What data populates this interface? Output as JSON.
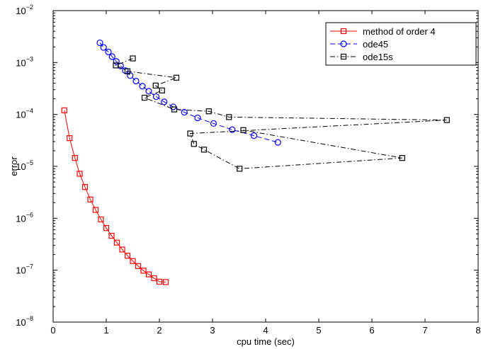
{
  "chart_data": {
    "type": "line",
    "xlabel": "cpu time (sec)",
    "ylabel": "error",
    "xlim": [
      0,
      8
    ],
    "ylim": [
      1e-08,
      0.01
    ],
    "yscale": "log",
    "grid": false,
    "legend_position": "top-right",
    "x_ticks": [
      "0",
      "1",
      "2",
      "3",
      "4",
      "5",
      "6",
      "7",
      "8"
    ],
    "y_ticks": [
      {
        "value": 1e-08,
        "base": "10",
        "exp": "−8"
      },
      {
        "value": 1e-07,
        "base": "10",
        "exp": "−7"
      },
      {
        "value": 1e-06,
        "base": "10",
        "exp": "−6"
      },
      {
        "value": 1e-05,
        "base": "10",
        "exp": "−5"
      },
      {
        "value": 0.0001,
        "base": "10",
        "exp": "−4"
      },
      {
        "value": 0.001,
        "base": "10",
        "exp": "−3"
      },
      {
        "value": 0.01,
        "base": "10",
        "exp": "−2"
      }
    ],
    "series": [
      {
        "name": "method of order 4",
        "color": "#ff0000",
        "line_style": "solid",
        "marker": "square",
        "x": [
          0.21,
          0.31,
          0.41,
          0.5,
          0.6,
          0.7,
          0.8,
          0.9,
          1.0,
          1.1,
          1.2,
          1.3,
          1.4,
          1.5,
          1.6,
          1.7,
          1.8,
          1.9,
          2.0,
          2.12
        ],
        "y": [
          0.00012,
          3.5e-05,
          1.45e-05,
          7.2e-06,
          4e-06,
          2.3e-06,
          1.45e-06,
          9.5e-07,
          6.5e-07,
          4.6e-07,
          3.4e-07,
          2.5e-07,
          1.9e-07,
          1.5e-07,
          1.2e-07,
          9.8e-08,
          8.3e-08,
          7e-08,
          6e-08,
          5.9e-08
        ]
      },
      {
        "name": "ode45",
        "color": "#0000ff",
        "line_style": "dashed",
        "marker": "circle",
        "x": [
          0.88,
          0.95,
          1.04,
          1.11,
          1.19,
          1.27,
          1.36,
          1.45,
          1.56,
          1.68,
          1.8,
          1.94,
          2.09,
          2.26,
          2.47,
          2.72,
          3.02,
          3.37,
          3.78,
          4.23
        ],
        "y": [
          0.0024,
          0.00195,
          0.0016,
          0.0013,
          0.00105,
          0.00086,
          0.0007,
          0.00056,
          0.00044,
          0.00035,
          0.00028,
          0.00022,
          0.000175,
          0.00014,
          0.00011,
          8.6e-05,
          6.7e-05,
          5.1e-05,
          3.9e-05,
          2.9e-05
        ]
      },
      {
        "name": "ode15s",
        "color": "#000000",
        "line_style": "dashdot",
        "marker": "square",
        "x": [
          1.5,
          1.18,
          1.4,
          2.32,
          1.93,
          2.05,
          1.72,
          2.28,
          2.93,
          3.31,
          7.41,
          2.58,
          2.65,
          2.84,
          3.51,
          6.57,
          3.58
        ],
        "y": [
          0.0012,
          0.00088,
          0.00068,
          0.00051,
          0.00036,
          0.00029,
          0.00021,
          0.000125,
          0.000115,
          8.9e-05,
          7.8e-05,
          4.3e-05,
          2.7e-05,
          2.1e-05,
          9e-06,
          1.45e-05,
          5e-05
        ]
      }
    ]
  }
}
